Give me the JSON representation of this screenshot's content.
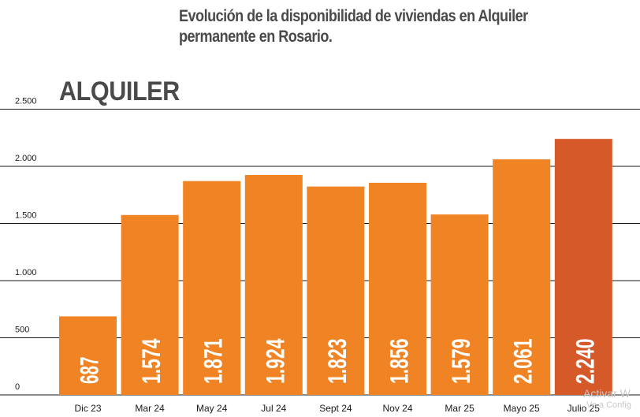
{
  "header": {
    "title_line1": "Evolución de la disponibilidad de viviendas en Alquiler",
    "title_line2": "permanente en Rosario.",
    "section_label": "ALQUILER"
  },
  "watermark": {
    "line1": "Activar W",
    "line2": "Ve a Config"
  },
  "colors": {
    "bar": "#f08424",
    "bar_highlight": "#d6592a",
    "grid": "#1a1a1a",
    "text": "#1a1a1a",
    "bar_label": "#ffffff"
  },
  "chart_data": {
    "type": "bar",
    "title": "Evolución de la disponibilidad de viviendas en Alquiler permanente en Rosario.",
    "xlabel": "",
    "ylabel": "",
    "categories": [
      "Dic 23",
      "Mar 24",
      "May 24",
      "Jul 24",
      "Sept 24",
      "Nov 24",
      "Mar 25",
      "Mayo 25",
      "Julio 25"
    ],
    "values": [
      687,
      1574,
      1871,
      1924,
      1823,
      1856,
      1579,
      2061,
      2240
    ],
    "bar_value_labels": [
      "687",
      "1.574",
      "1.871",
      "1.924",
      "1.823",
      "1.856",
      "1.579",
      "2.061",
      "2.240"
    ],
    "bar_label_visible": [
      true,
      true,
      true,
      true,
      true,
      true,
      true,
      true,
      true
    ],
    "highlight_index": 8,
    "ylim": [
      0,
      2500
    ],
    "yticks": [
      0,
      500,
      1000,
      1500,
      2000,
      2500
    ],
    "ytick_labels": [
      "0",
      "500",
      "1.000",
      "1.500",
      "2.000",
      "2.500"
    ],
    "grid": true,
    "legend": "none"
  }
}
